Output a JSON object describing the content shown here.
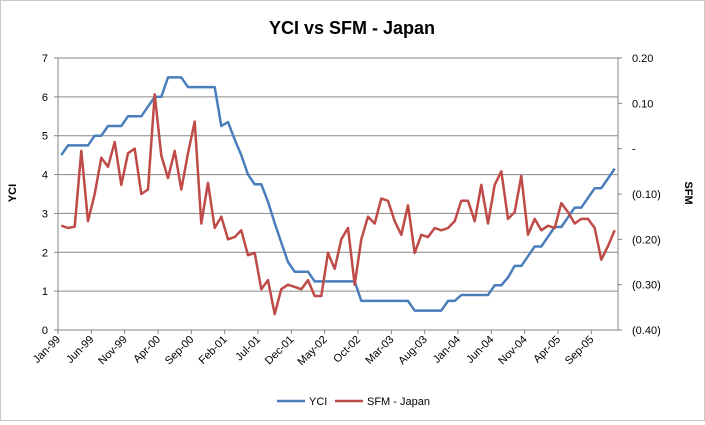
{
  "chart_data": {
    "type": "line",
    "title": "YCI vs SFM - Japan",
    "xlabel": "",
    "ylabel": "YCI",
    "y2label": "SFM",
    "ylim": [
      0,
      7
    ],
    "y2lim": [
      -0.4,
      0.2
    ],
    "yticks": [
      "0",
      "1",
      "2",
      "3",
      "4",
      "5",
      "6",
      "7"
    ],
    "y2ticks": [
      "(0.40)",
      "(0.30)",
      "(0.20)",
      "(0.10)",
      "-",
      "0.10",
      "0.20"
    ],
    "xticks": [
      {
        "label": "Jan-99",
        "index": 0
      },
      {
        "label": "Jun-99",
        "index": 5
      },
      {
        "label": "Nov-99",
        "index": 10
      },
      {
        "label": "Apr-00",
        "index": 15
      },
      {
        "label": "Sep-00",
        "index": 20
      },
      {
        "label": "Feb-01",
        "index": 25
      },
      {
        "label": "Jul-01",
        "index": 30
      },
      {
        "label": "Dec-01",
        "index": 35
      },
      {
        "label": "May-02",
        "index": 40
      },
      {
        "label": "Oct-02",
        "index": 45
      },
      {
        "label": "Mar-03",
        "index": 50
      },
      {
        "label": "Aug-03",
        "index": 55
      },
      {
        "label": "Jan-04",
        "index": 60
      },
      {
        "label": "Jun-04",
        "index": 65
      },
      {
        "label": "Nov-04",
        "index": 70
      },
      {
        "label": "Apr-05",
        "index": 75
      },
      {
        "label": "Sep-05",
        "index": 80
      }
    ],
    "series": [
      {
        "name": "YCI",
        "axis": "left",
        "color": "#4a7ebb",
        "values": [
          4.5,
          4.75,
          4.75,
          4.75,
          4.75,
          5.0,
          5.0,
          5.25,
          5.25,
          5.25,
          5.5,
          5.5,
          5.5,
          5.75,
          6.0,
          6.0,
          6.5,
          6.5,
          6.5,
          6.25,
          6.25,
          6.25,
          6.25,
          6.25,
          5.25,
          5.35,
          4.9,
          4.5,
          4.0,
          3.75,
          3.75,
          3.3,
          2.75,
          2.25,
          1.75,
          1.5,
          1.5,
          1.5,
          1.25,
          1.25,
          1.25,
          1.25,
          1.25,
          1.25,
          1.25,
          0.75,
          0.75,
          0.75,
          0.75,
          0.75,
          0.75,
          0.75,
          0.75,
          0.5,
          0.5,
          0.5,
          0.5,
          0.5,
          0.75,
          0.75,
          0.9,
          0.9,
          0.9,
          0.9,
          0.9,
          1.15,
          1.15,
          1.35,
          1.65,
          1.65,
          1.9,
          2.15,
          2.15,
          2.4,
          2.65,
          2.65,
          2.9,
          3.15,
          3.15,
          3.4,
          3.65,
          3.65,
          3.9,
          4.15
        ]
      },
      {
        "name": "SFM - Japan",
        "axis": "right",
        "color": "#be4b48",
        "values": [
          -0.17,
          -0.175,
          -0.172,
          -0.005,
          -0.16,
          -0.1,
          -0.02,
          -0.04,
          0.015,
          -0.08,
          -0.01,
          0.0,
          -0.1,
          -0.09,
          0.12,
          -0.015,
          -0.065,
          -0.005,
          -0.09,
          -0.01,
          0.06,
          -0.165,
          -0.075,
          -0.175,
          -0.15,
          -0.2,
          -0.195,
          -0.18,
          -0.235,
          -0.23,
          -0.31,
          -0.29,
          -0.365,
          -0.31,
          -0.3,
          -0.305,
          -0.31,
          -0.29,
          -0.325,
          -0.325,
          -0.23,
          -0.265,
          -0.2,
          -0.175,
          -0.3,
          -0.2,
          -0.15,
          -0.165,
          -0.11,
          -0.115,
          -0.16,
          -0.19,
          -0.125,
          -0.23,
          -0.19,
          -0.195,
          -0.175,
          -0.18,
          -0.175,
          -0.16,
          -0.115,
          -0.115,
          -0.16,
          -0.08,
          -0.165,
          -0.08,
          -0.05,
          -0.155,
          -0.14,
          -0.06,
          -0.19,
          -0.155,
          -0.18,
          -0.17,
          -0.175,
          -0.12,
          -0.14,
          -0.165,
          -0.155,
          -0.155,
          -0.175,
          -0.245,
          -0.215,
          -0.18
        ]
      }
    ]
  }
}
